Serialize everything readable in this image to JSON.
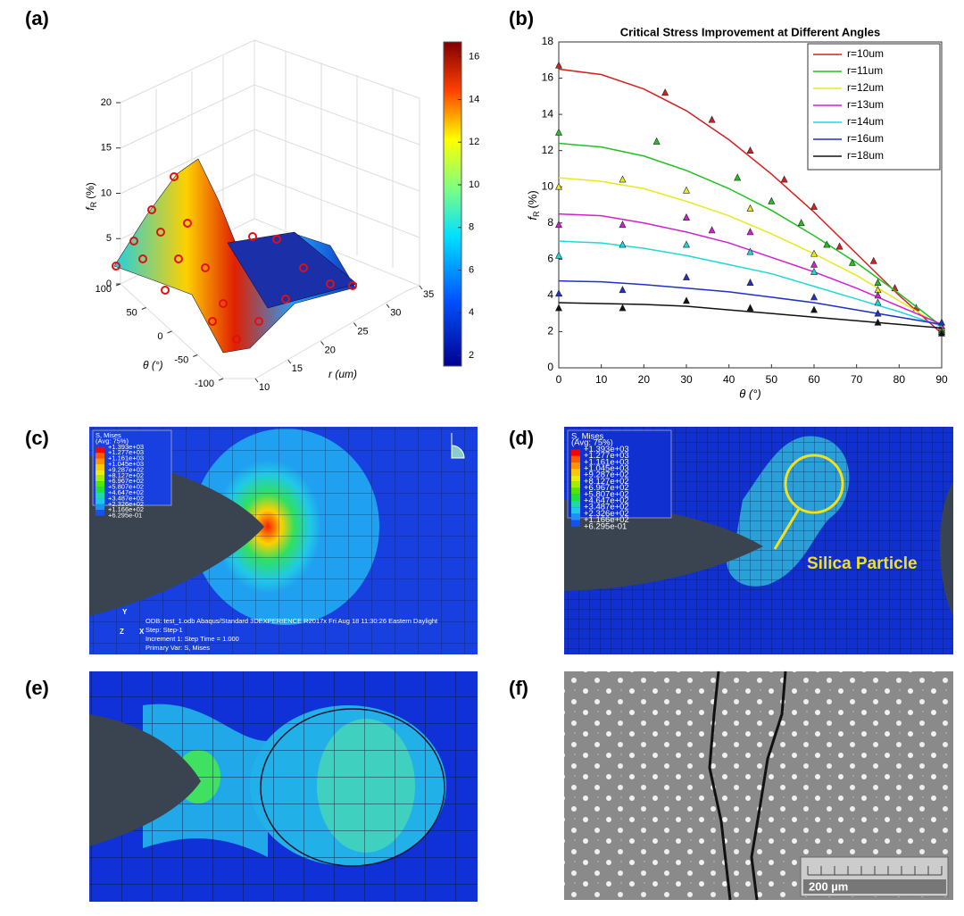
{
  "panel_labels": [
    "(a)",
    "(b)",
    "(c)",
    "(d)",
    "(e)",
    "(f)"
  ],
  "chart_data": [
    {
      "type": "surface3d",
      "zlabel_main": "f",
      "zlabel_sub": "R",
      "zlabel_unit": "(%)",
      "xlabel": "r (um)",
      "ylabel": "θ (°)",
      "xlim": [
        10,
        35
      ],
      "xticks": [
        10,
        15,
        20,
        25,
        30,
        35
      ],
      "ylim": [
        -100,
        100
      ],
      "yticks": [
        -100,
        -50,
        0,
        50,
        100
      ],
      "zlim": [
        0,
        20
      ],
      "zticks": [
        0,
        5,
        10,
        15,
        20
      ],
      "clim": [
        1.5,
        16.7
      ],
      "cticks": [
        2,
        4,
        6,
        8,
        10,
        12,
        14,
        16
      ]
    },
    {
      "type": "line",
      "title": "Critical Stress Improvement at Different Angles",
      "xlabel": "θ (°)",
      "ylabel_main": "f",
      "ylabel_sub": "R",
      "ylabel_unit": "(%)",
      "xlim": [
        0,
        90
      ],
      "xticks": [
        0,
        10,
        20,
        30,
        40,
        50,
        60,
        70,
        80,
        90
      ],
      "ylim": [
        0,
        18
      ],
      "yticks": [
        0,
        2,
        4,
        6,
        8,
        10,
        12,
        14,
        16,
        18
      ],
      "legend": "upper right",
      "x": [
        0,
        10,
        20,
        30,
        40,
        50,
        60,
        70,
        80,
        90
      ],
      "series": [
        {
          "name": "r=10um",
          "color": "#d62020",
          "values": [
            16.5,
            16.2,
            15.4,
            14.2,
            12.6,
            10.7,
            8.6,
            6.3,
            4.0,
            1.9
          ],
          "marker_x": [
            0,
            25,
            36,
            45,
            53,
            60,
            66,
            74,
            79,
            84,
            90
          ],
          "marker_values": [
            16.7,
            15.2,
            13.7,
            12,
            10.4,
            8.9,
            6.7,
            5.9,
            4.4,
            3.3,
            2
          ]
        },
        {
          "name": "r=11um",
          "color": "#22c022",
          "values": [
            12.4,
            12.2,
            11.7,
            10.9,
            9.9,
            8.7,
            7.3,
            5.8,
            4.1,
            2.3
          ],
          "marker_x": [
            0,
            23,
            42,
            50,
            57,
            63,
            69,
            75,
            90
          ],
          "marker_values": [
            13,
            12.5,
            10.5,
            9.2,
            8,
            6.8,
            5.8,
            4.7,
            2.1
          ]
        },
        {
          "name": "r=12um",
          "color": "#e8e820",
          "values": [
            10.5,
            10.3,
            9.9,
            9.2,
            8.4,
            7.4,
            6.3,
            5.1,
            3.7,
            2.3
          ],
          "marker_x": [
            0,
            15,
            30,
            45,
            60,
            75,
            90
          ],
          "marker_values": [
            10,
            10.4,
            9.8,
            8.8,
            6.3,
            4.3,
            2.2
          ]
        },
        {
          "name": "r=13um",
          "color": "#d020d0",
          "values": [
            8.5,
            8.4,
            8.0,
            7.5,
            6.9,
            6.1,
            5.3,
            4.4,
            3.4,
            2.4
          ],
          "marker_x": [
            0,
            15,
            30,
            36,
            45,
            60,
            75,
            90
          ],
          "marker_values": [
            7.9,
            7.9,
            8.3,
            7.6,
            7.5,
            5.7,
            4.0,
            2.3
          ]
        },
        {
          "name": "r=14um",
          "color": "#20d8d8",
          "values": [
            7.0,
            6.9,
            6.6,
            6.2,
            5.7,
            5.2,
            4.5,
            3.8,
            3.1,
            2.3
          ],
          "marker_x": [
            0,
            15,
            30,
            45,
            60,
            75,
            90
          ],
          "marker_values": [
            6.2,
            6.8,
            6.8,
            6.4,
            5.3,
            3.6,
            2.0
          ]
        },
        {
          "name": "r=16um",
          "color": "#2030c8",
          "values": [
            4.8,
            4.75,
            4.6,
            4.4,
            4.2,
            3.9,
            3.6,
            3.2,
            2.8,
            2.4
          ],
          "marker_x": [
            0,
            15,
            30,
            45,
            60,
            75,
            90
          ],
          "marker_values": [
            4.1,
            4.3,
            5.0,
            4.7,
            3.9,
            3.0,
            2.5
          ]
        },
        {
          "name": "r=18um",
          "color": "#111111",
          "values": [
            3.6,
            3.55,
            3.5,
            3.4,
            3.2,
            3.0,
            2.8,
            2.6,
            2.4,
            2.2
          ],
          "marker_x": [
            0,
            15,
            30,
            45,
            60,
            75,
            90
          ],
          "marker_values": [
            3.3,
            3.3,
            3.7,
            3.3,
            3.2,
            2.5,
            1.9
          ]
        }
      ]
    }
  ],
  "fea_c": {
    "legend_title": "S, Mises",
    "legend_avg": "(Avg: 75%)",
    "legend_values": [
      "+1.393e+03",
      "+1.277e+03",
      "+1.161e+03",
      "+1.045e+03",
      "+9.287e+02",
      "+8.127e+02",
      "+6.967e+02",
      "+5.807e+02",
      "+4.647e+02",
      "+3.487e+02",
      "+2.326e+02",
      "+1.166e+02",
      "+6.295e-01"
    ],
    "triad": [
      "Y",
      "Z",
      "X"
    ],
    "footer": [
      "ODB: test_1.odb    Abaqus/Standard 3DEXPERIENCE R2017x    Fri Aug 18 11:30:26 Eastern Daylight",
      "Step: Step-1",
      "Increment    1: Step Time =    1.000",
      "Primary Var: S, Mises"
    ]
  },
  "fea_d": {
    "legend_title": "S, Mises",
    "legend_avg": "(Avg: 75%)",
    "legend_values": [
      "+1.393e+03",
      "+1.277e+03",
      "+1.161e+03",
      "+1.045e+03",
      "+9.287e+02",
      "+8.127e+02",
      "+6.967e+02",
      "+5.807e+02",
      "+4.647e+02",
      "+3.487e+02",
      "+2.326e+02",
      "+1.166e+02",
      "+6.295e-01"
    ],
    "annotation": "Silica Particle"
  },
  "sem_f": {
    "scale_bar": "200 µm"
  }
}
